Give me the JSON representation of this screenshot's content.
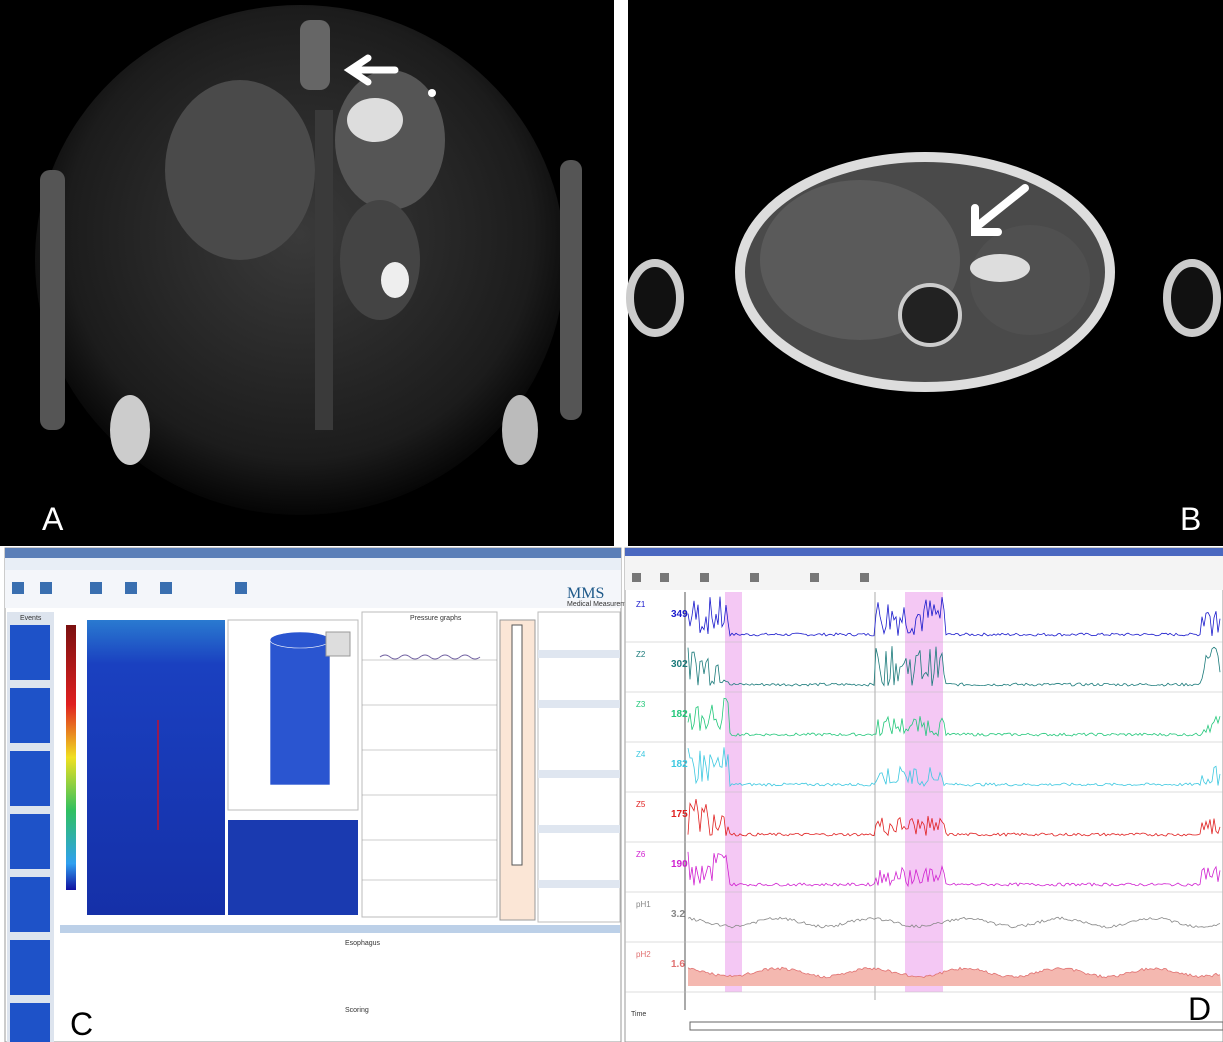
{
  "panels": {
    "a": {
      "label": "A"
    },
    "b": {
      "label": "B"
    },
    "c": {
      "label": "C",
      "logo": "MMS",
      "logo_sub": "Medical Measurement Systems",
      "events_title": "Events",
      "pressure_title": "Pressure graphs",
      "esophagus_title": "Esophagus",
      "scoring_title": "Scoring"
    },
    "d": {
      "label": "D",
      "time_label": "Time",
      "channels": [
        {
          "name": "Z1",
          "reading": "349",
          "color": "#1a1acc"
        },
        {
          "name": "Z2",
          "reading": "302",
          "color": "#1a7a7a"
        },
        {
          "name": "Z3",
          "reading": "182",
          "color": "#22c77a"
        },
        {
          "name": "Z4",
          "reading": "182",
          "color": "#3cc8e0"
        },
        {
          "name": "Z5",
          "reading": "175",
          "color": "#e02020"
        },
        {
          "name": "Z6",
          "reading": "190",
          "color": "#d020d0"
        },
        {
          "name": "pH1",
          "reading": "3.2",
          "color": "#888888"
        },
        {
          "name": "pH2",
          "reading": "1.6",
          "color": "#e07070"
        }
      ]
    }
  }
}
